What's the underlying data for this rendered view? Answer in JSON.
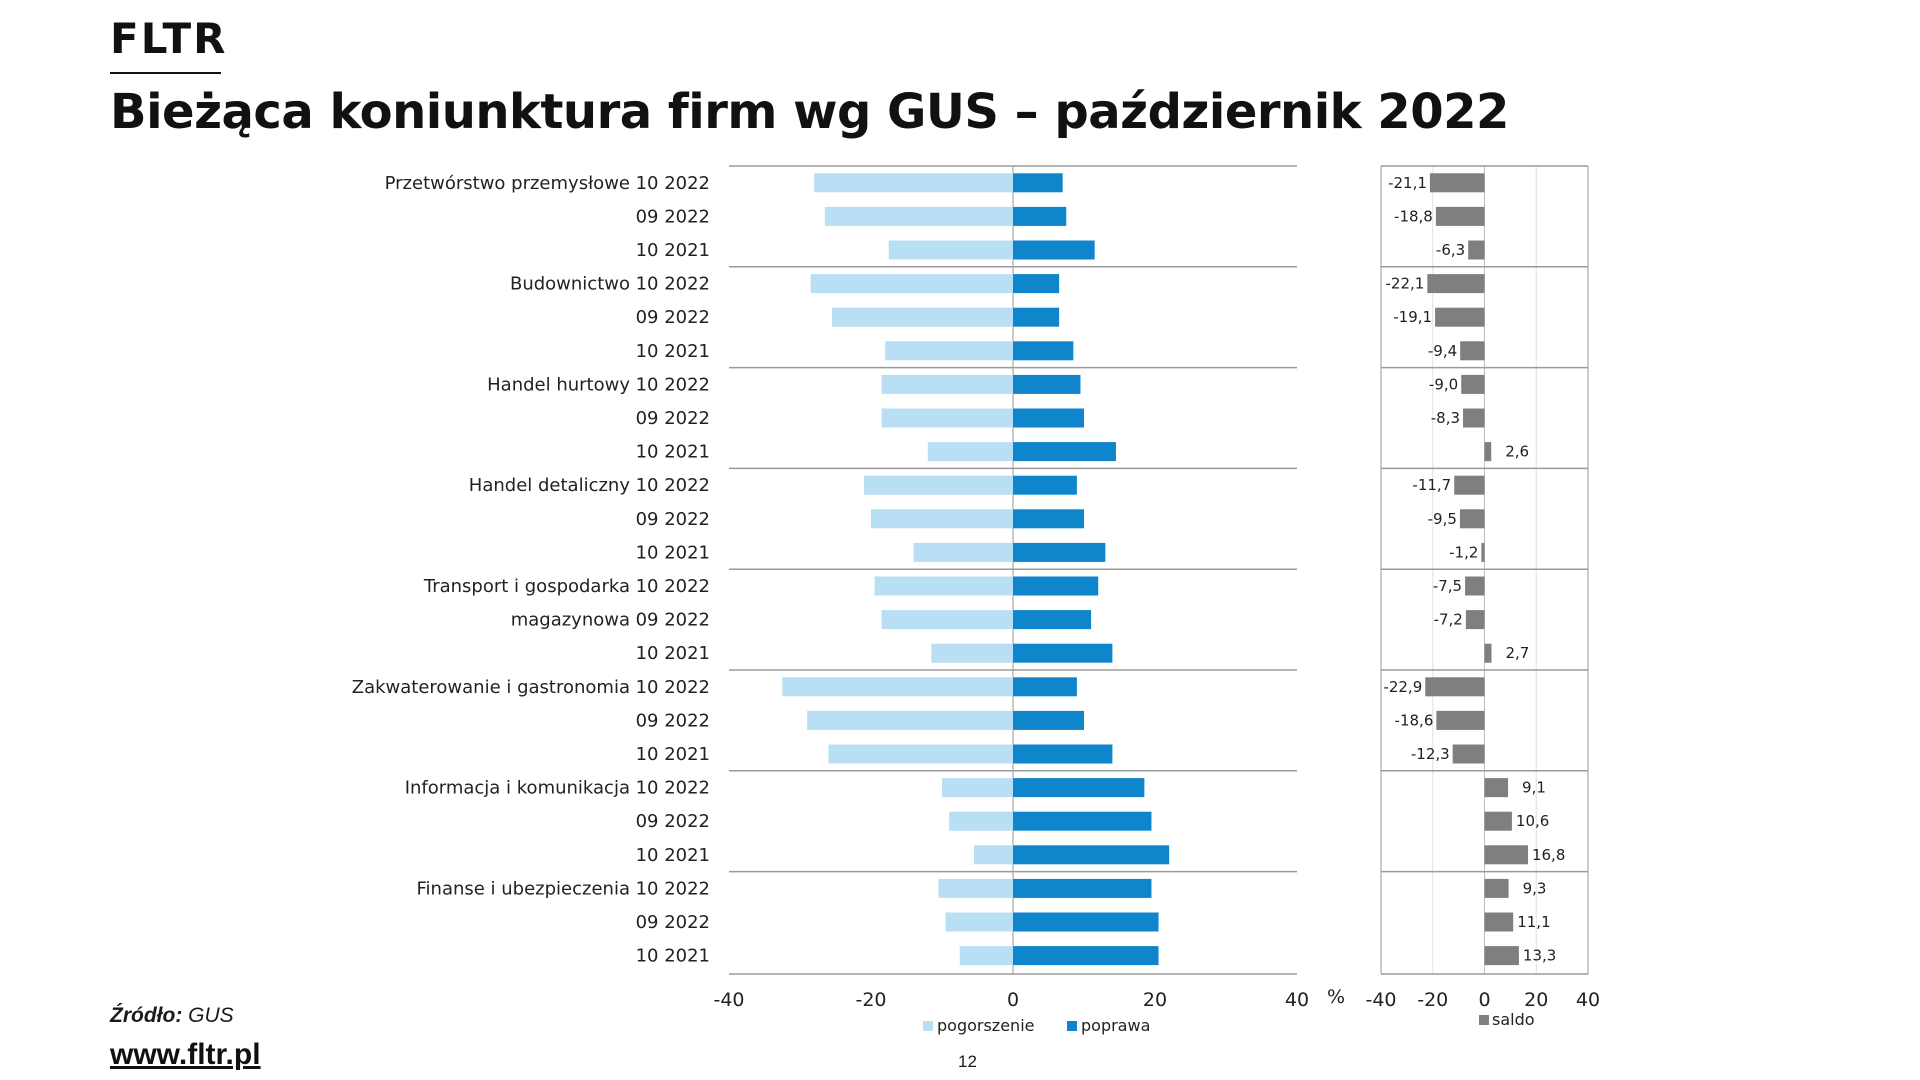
{
  "header": {
    "logo": "FLTR",
    "title": "Bieżąca koniunktura firm wg GUS – październik 2022"
  },
  "footer": {
    "source_label": "Źródło:",
    "source_value": "GUS",
    "website": "www.fltr.pl",
    "page_number": "12"
  },
  "colors": {
    "pogorszenie": "#b8dff3",
    "poprawa": "#0f86cc",
    "saldo": "#7f7f7f",
    "grid": "#9a9a9a"
  },
  "chart_data": [
    {
      "type": "bar",
      "orientation": "horizontal",
      "stacking": "diverging",
      "xlim": [
        -40,
        40
      ],
      "xticks": [
        "-40",
        "-20",
        "0",
        "20",
        "40"
      ],
      "xunit": "%",
      "legend": [
        "pogorszenie",
        "poprawa"
      ],
      "legend_position": "bottom",
      "groups": [
        {
          "name": "Przetwórstwo przemysłowe",
          "rows": [
            {
              "period": "10 2022",
              "pogorszenie": -28,
              "poprawa": 7
            },
            {
              "period": "09 2022",
              "pogorszenie": -26.5,
              "poprawa": 7.5
            },
            {
              "period": "10 2021",
              "pogorszenie": -17.5,
              "poprawa": 11.5
            }
          ]
        },
        {
          "name": "Budownictwo",
          "rows": [
            {
              "period": "10 2022",
              "pogorszenie": -28.5,
              "poprawa": 6.5
            },
            {
              "period": "09 2022",
              "pogorszenie": -25.5,
              "poprawa": 6.5
            },
            {
              "period": "10 2021",
              "pogorszenie": -18,
              "poprawa": 8.5
            }
          ]
        },
        {
          "name": "Handel hurtowy",
          "rows": [
            {
              "period": "10 2022",
              "pogorszenie": -18.5,
              "poprawa": 9.5
            },
            {
              "period": "09 2022",
              "pogorszenie": -18.5,
              "poprawa": 10
            },
            {
              "period": "10 2021",
              "pogorszenie": -12,
              "poprawa": 14.5
            }
          ]
        },
        {
          "name": "Handel detaliczny",
          "rows": [
            {
              "period": "10 2022",
              "pogorszenie": -21,
              "poprawa": 9
            },
            {
              "period": "09 2022",
              "pogorszenie": -20,
              "poprawa": 10
            },
            {
              "period": "10 2021",
              "pogorszenie": -14,
              "poprawa": 13
            }
          ]
        },
        {
          "name": "Transport i gospodarka magazynowa",
          "label_lines": [
            "Transport i gospodarka",
            "magazynowa"
          ],
          "rows": [
            {
              "period": "10 2022",
              "pogorszenie": -19.5,
              "poprawa": 12
            },
            {
              "period": "09 2022",
              "pogorszenie": -18.5,
              "poprawa": 11
            },
            {
              "period": "10 2021",
              "pogorszenie": -11.5,
              "poprawa": 14
            }
          ]
        },
        {
          "name": "Zakwaterowanie i gastronomia",
          "rows": [
            {
              "period": "10 2022",
              "pogorszenie": -32.5,
              "poprawa": 9
            },
            {
              "period": "09 2022",
              "pogorszenie": -29,
              "poprawa": 10
            },
            {
              "period": "10 2021",
              "pogorszenie": -26,
              "poprawa": 14
            }
          ]
        },
        {
          "name": "Informacja i komunikacja",
          "rows": [
            {
              "period": "10 2022",
              "pogorszenie": -10,
              "poprawa": 18.5
            },
            {
              "period": "09 2022",
              "pogorszenie": -9,
              "poprawa": 19.5
            },
            {
              "period": "10 2021",
              "pogorszenie": -5.5,
              "poprawa": 22
            }
          ]
        },
        {
          "name": "Finanse i ubezpieczenia",
          "rows": [
            {
              "period": "10 2022",
              "pogorszenie": -10.5,
              "poprawa": 19.5
            },
            {
              "period": "09 2022",
              "pogorszenie": -9.5,
              "poprawa": 20.5
            },
            {
              "period": "10 2021",
              "pogorszenie": -7.5,
              "poprawa": 20.5
            }
          ]
        }
      ]
    },
    {
      "type": "bar",
      "orientation": "horizontal",
      "xlim": [
        -40,
        40
      ],
      "xticks": [
        "-40",
        "-20",
        "0",
        "20",
        "40"
      ],
      "legend": [
        "saldo"
      ],
      "legend_position": "bottom",
      "values": [
        -21.1,
        -18.8,
        -6.3,
        -22.1,
        -19.1,
        -9.4,
        -9.0,
        -8.3,
        2.6,
        -11.7,
        -9.5,
        -1.2,
        -7.5,
        -7.2,
        2.7,
        -22.9,
        -18.6,
        -12.3,
        9.1,
        10.6,
        16.8,
        9.3,
        11.1,
        13.3
      ],
      "labels": [
        "-21,1",
        "-18,8",
        "-6,3",
        "-22,1",
        "-19,1",
        "-9,4",
        "-9,0",
        "-8,3",
        "2,6",
        "-11,7",
        "-9,5",
        "-1,2",
        "-7,5",
        "-7,2",
        "2,7",
        "-22,9",
        "-18,6",
        "-12,3",
        "9,1",
        "10,6",
        "16,8",
        "9,3",
        "11,1",
        "13,3"
      ]
    }
  ]
}
